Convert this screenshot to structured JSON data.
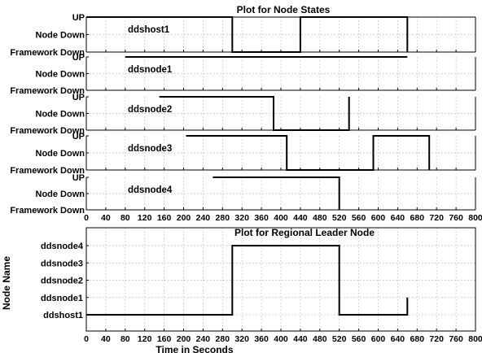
{
  "chart_data": [
    {
      "type": "line",
      "title": "Plot for Node States",
      "state_levels": [
        "Framework Down",
        "Node Down",
        "UP"
      ],
      "xlim": [
        0,
        800
      ],
      "x_ticks": [
        0,
        40,
        80,
        120,
        160,
        200,
        240,
        280,
        320,
        360,
        400,
        440,
        480,
        520,
        560,
        600,
        640,
        680,
        720,
        760,
        800
      ],
      "grid": true,
      "series": [
        {
          "name": "ddshost1",
          "points": [
            [
              0,
              "UP"
            ],
            [
              300,
              "UP"
            ],
            [
              300,
              "Framework Down"
            ],
            [
              440,
              "Framework Down"
            ],
            [
              440,
              "UP"
            ],
            [
              660,
              "UP"
            ],
            [
              660,
              "Framework Down"
            ]
          ]
        },
        {
          "name": "ddsnode1",
          "points": [
            [
              80,
              "UP"
            ],
            [
              660,
              "UP"
            ]
          ]
        },
        {
          "name": "ddsnode2",
          "points": [
            [
              150,
              "UP"
            ],
            [
              385,
              "UP"
            ],
            [
              385,
              "Framework Down"
            ],
            [
              540,
              "Framework Down"
            ],
            [
              540,
              "UP"
            ]
          ]
        },
        {
          "name": "ddsnode3",
          "points": [
            [
              205,
              "UP"
            ],
            [
              412,
              "UP"
            ],
            [
              412,
              "Framework Down"
            ],
            [
              590,
              "Framework Down"
            ],
            [
              590,
              "UP"
            ],
            [
              705,
              "UP"
            ],
            [
              705,
              "Framework Down"
            ]
          ]
        },
        {
          "name": "ddsnode4",
          "points": [
            [
              260,
              "UP"
            ],
            [
              520,
              "UP"
            ],
            [
              520,
              "Framework Down"
            ]
          ]
        }
      ]
    },
    {
      "type": "line",
      "title": "Plot for Regional Leader Node",
      "xlabel": "Time in Seconds",
      "ylabel": "Node Name",
      "categories": [
        "ddshost1",
        "ddsnode1",
        "ddsnode2",
        "ddsnode3",
        "ddsnode4"
      ],
      "xlim": [
        0,
        800
      ],
      "x_ticks": [
        0,
        40,
        80,
        120,
        160,
        200,
        240,
        280,
        320,
        360,
        400,
        440,
        480,
        520,
        560,
        600,
        640,
        680,
        720,
        760,
        800
      ],
      "grid": true,
      "series": [
        {
          "points": [
            [
              0,
              "ddshost1"
            ],
            [
              300,
              "ddshost1"
            ],
            [
              300,
              "ddsnode4"
            ],
            [
              520,
              "ddsnode4"
            ],
            [
              520,
              "ddshost1"
            ],
            [
              660,
              "ddshost1"
            ],
            [
              660,
              "ddsnode1"
            ]
          ]
        }
      ]
    }
  ]
}
